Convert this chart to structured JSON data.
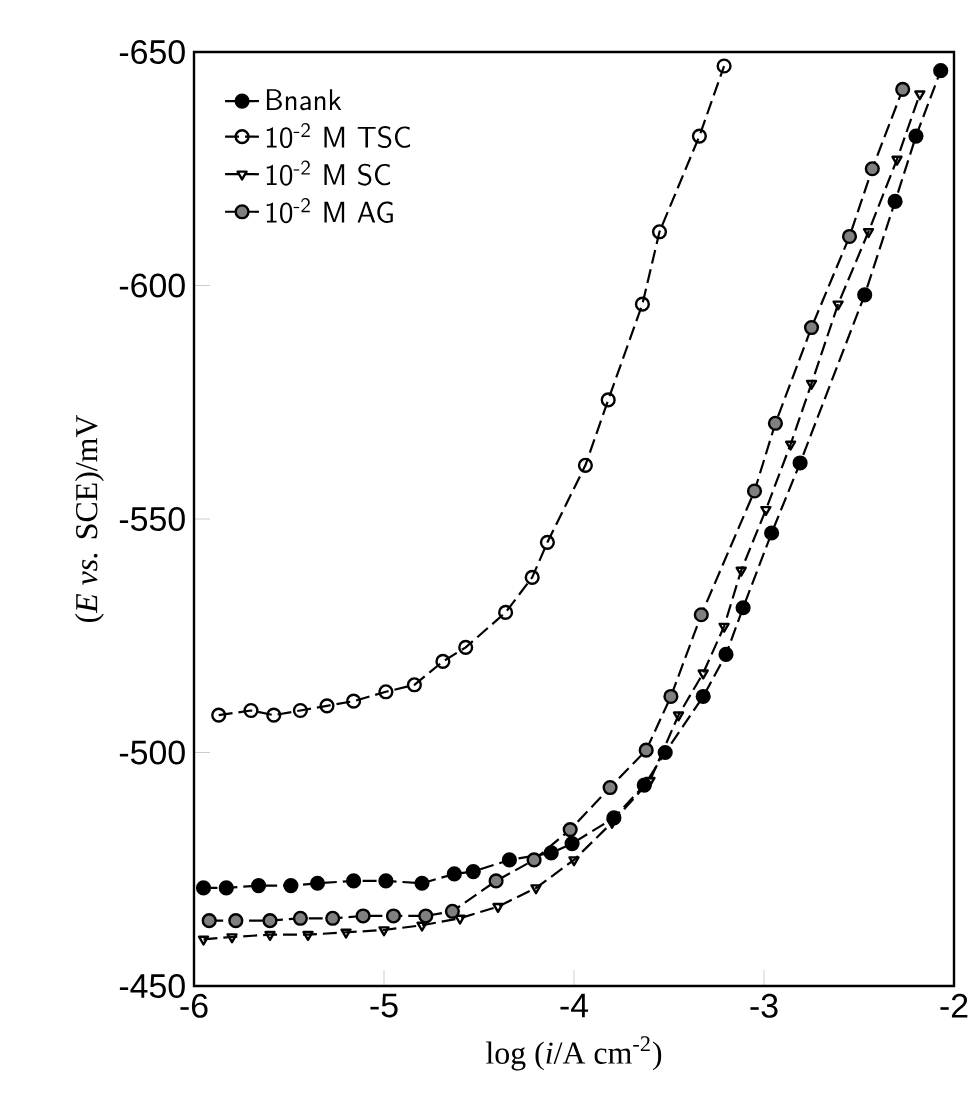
{
  "chart_data": {
    "type": "line",
    "xlabel": "log (*i*/A cm$^{-2}$)",
    "ylabel": "(*E vs.* SCE)/mV",
    "xlim": [
      -6,
      -2
    ],
    "xticks": [
      -6,
      -5,
      -4,
      -3,
      -2
    ],
    "ylim": [
      -450,
      -650
    ],
    "yticks": [
      -650,
      -600,
      -550,
      -500,
      -450
    ],
    "legend": "top left",
    "line_style": "dashed",
    "grid": false,
    "series": [
      {
        "name": "Bnank",
        "color": "#000000",
        "marker": "circle",
        "x": [
          -5.95,
          -5.83,
          -5.66,
          -5.49,
          -5.35,
          -5.16,
          -4.99,
          -4.8,
          -4.63,
          -4.53,
          -4.34,
          -4.12,
          -4.01,
          -3.79,
          -3.63,
          -3.52,
          -3.32,
          -3.2,
          -3.11,
          -2.96,
          -2.81,
          -2.47,
          -2.31,
          -2.2,
          -2.07
        ],
        "values": [
          -471,
          -471,
          -471.5,
          -471.5,
          -472,
          -472.5,
          -472.5,
          -472,
          -474,
          -474.5,
          -477,
          -478.5,
          -480.5,
          -486,
          -493,
          -500,
          -512,
          -521,
          -531,
          -547,
          -562,
          -598,
          -618,
          -632,
          -646
        ]
      },
      {
        "name": "10$^{-2}$ M TSC",
        "color": "#000000",
        "marker": "circle",
        "x": [
          -5.87,
          -5.7,
          -5.58,
          -5.44,
          -5.3,
          -5.16,
          -4.99,
          -4.84,
          -4.69,
          -4.57,
          -4.36,
          -4.22,
          -4.14,
          -3.94,
          -3.82,
          -3.64,
          -3.55,
          -3.34,
          -3.21
        ],
        "values": [
          -508,
          -509,
          -508,
          -509,
          -510,
          -511,
          -513,
          -514.5,
          -519.5,
          -522.5,
          -530,
          -537.5,
          -545,
          -561.5,
          -575.5,
          -596,
          -611.5,
          -632,
          -647
        ]
      },
      {
        "name": "10$^{-2}$ M SC",
        "color": "#000000",
        "marker": "triangle",
        "x": [
          -5.95,
          -5.8,
          -5.6,
          -5.4,
          -5.2,
          -5.0,
          -4.8,
          -4.6,
          -4.4,
          -4.2,
          -4.0,
          -3.8,
          -3.6,
          -3.45,
          -3.32,
          -3.21,
          -3.12,
          -2.99,
          -2.86,
          -2.75,
          -2.61,
          -2.45,
          -2.3,
          -2.18
        ],
        "values": [
          -460,
          -460.5,
          -461,
          -461,
          -461.5,
          -462,
          -463,
          -464.5,
          -467,
          -471,
          -477,
          -485,
          -494,
          -508,
          -517,
          -527,
          -539,
          -552,
          -566,
          -579,
          -596,
          -611.5,
          -627,
          -641
        ]
      },
      {
        "name": "10$^{-2}$ M AG",
        "color": "#000000",
        "marker": "circle",
        "x": [
          -5.92,
          -5.78,
          -5.6,
          -5.44,
          -5.27,
          -5.11,
          -4.95,
          -4.78,
          -4.64,
          -4.41,
          -4.21,
          -4.02,
          -3.81,
          -3.62,
          -3.49,
          -3.33,
          -3.05,
          -2.94,
          -2.75,
          -2.55,
          -2.43,
          -2.27
        ],
        "values": [
          -464,
          -464,
          -464,
          -464.5,
          -464.5,
          -465,
          -465,
          -465,
          -466,
          -472.5,
          -477,
          -483.5,
          -492.5,
          -500.5,
          -512,
          -529.5,
          -556,
          -570.5,
          -591,
          -610.5,
          -625,
          -642
        ]
      }
    ]
  }
}
